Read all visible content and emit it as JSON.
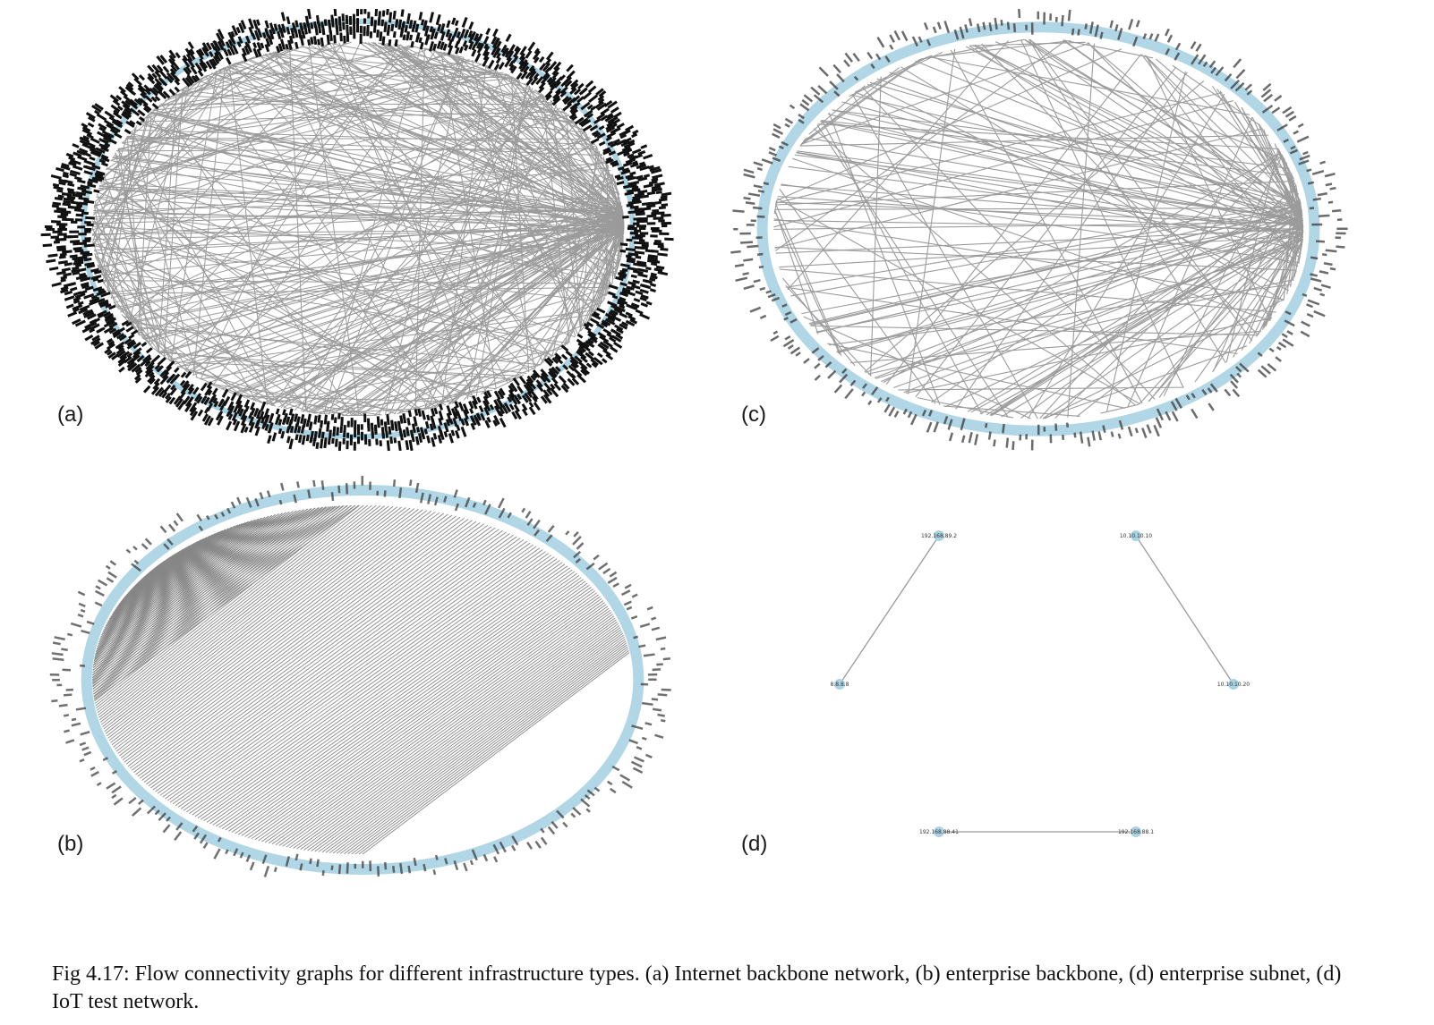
{
  "panels": {
    "a": {
      "label": "(a)",
      "node_count": 520,
      "edge_count": 420,
      "hub_count": 1
    },
    "b": {
      "label": "(b)",
      "node_count": 240,
      "edge_count": 230,
      "hub_count": 0
    },
    "c": {
      "label": "(c)",
      "node_count": 300,
      "edge_count": 200,
      "hub_count": 1
    },
    "d": {
      "label": "(d)",
      "nodes": [
        {
          "id": "n1",
          "label": "192.168.89.2"
        },
        {
          "id": "n2",
          "label": "10.10.10.10"
        },
        {
          "id": "n3",
          "label": "8.8.8.8"
        },
        {
          "id": "n4",
          "label": "10.10.10.20"
        },
        {
          "id": "n5",
          "label": "192.168.88.41"
        },
        {
          "id": "n6",
          "label": "192.168.88.1"
        }
      ],
      "edges": [
        [
          "n1",
          "n3"
        ],
        [
          "n2",
          "n4"
        ],
        [
          "n5",
          "n6"
        ]
      ]
    }
  },
  "colors": {
    "edge": "#8a8a8a",
    "node": "#a9d3e3",
    "label": "#222222",
    "ring": "#111111"
  },
  "caption": "Fig 4.17: Flow connectivity graphs for different infrastructure types. (a) Internet backbone network, (b) enterprise backbone, (d) enterprise subnet, (d) IoT test network."
}
